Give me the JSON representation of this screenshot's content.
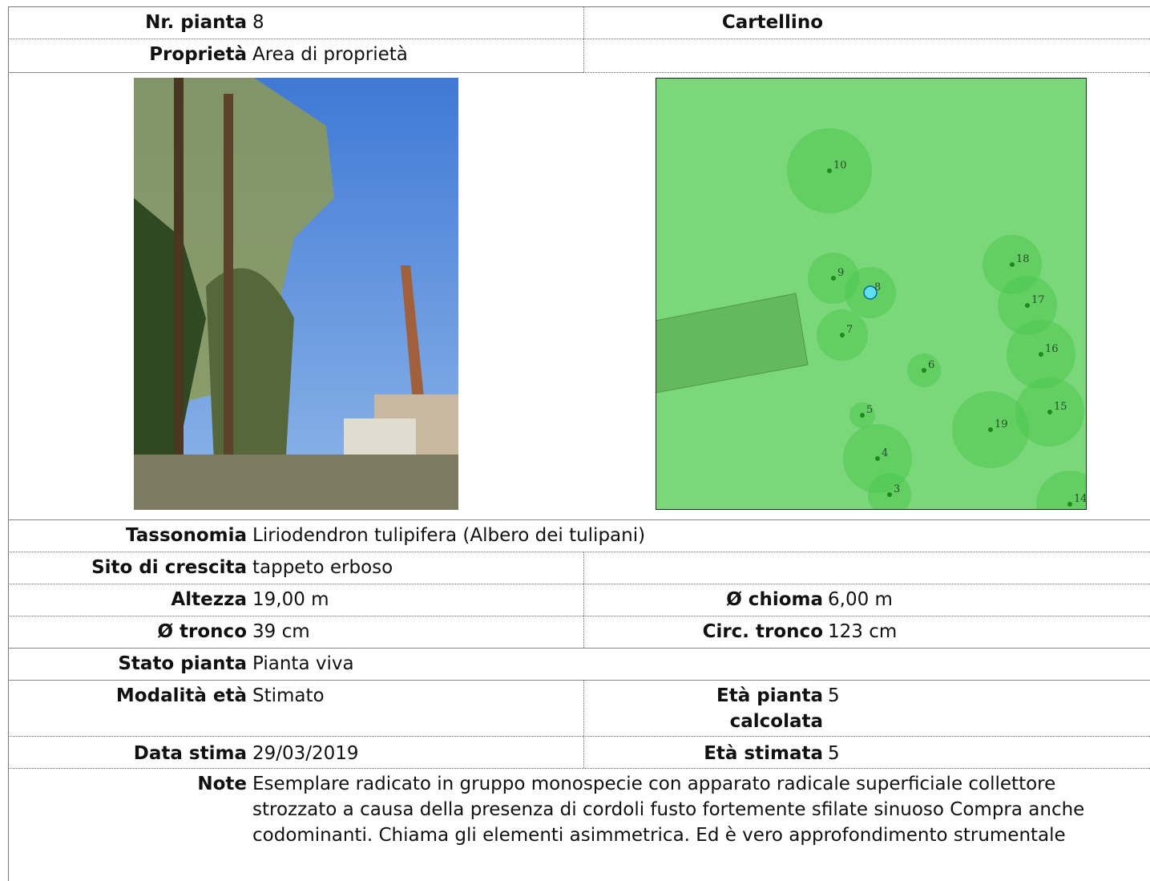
{
  "fields": [
    {
      "label": "Nr. pianta",
      "value": "8"
    },
    {
      "label": "Proprietà",
      "value": "Area di proprietà"
    },
    {
      "label": "Tassonomia",
      "value": "Liriodendron tulipifera (Albero dei tulipani)"
    },
    {
      "label": "Sito di crescita",
      "value": "tappeto erboso"
    },
    {
      "label": "Altezza",
      "value": "19,00 m"
    },
    {
      "label": "Ø chioma",
      "value": "6,00 m"
    },
    {
      "label": "Ø tronco",
      "value": "39 cm"
    },
    {
      "label": "Circ. tronco",
      "value": "123 cm"
    },
    {
      "label": "Stato pianta",
      "value": "Pianta viva"
    },
    {
      "label": "Modalità età",
      "value": "Stimato"
    },
    {
      "label": "Età pianta calcolata",
      "value": "5"
    },
    {
      "label": "Data stima",
      "value": "29/03/2019"
    },
    {
      "label": "Età stimata",
      "value": "5"
    },
    {
      "label": "Note",
      "value": "Esemplare radicato in gruppo monospecie con apparato radicale superficiale collettore strozzato a causa della presenza di cordoli fusto fortemente sfilate sinuoso Compra anche codominanti. Chiama gli elementi asimmetrica. Ed è vero approfondimento strumentale"
    }
  ],
  "cartellino": "Cartellino",
  "map": {
    "trees": [
      {
        "label": "10"
      },
      {
        "label": "9"
      },
      {
        "label": "8"
      },
      {
        "label": "7"
      },
      {
        "label": "6"
      },
      {
        "label": "5"
      },
      {
        "label": "4"
      },
      {
        "label": "3"
      },
      {
        "label": "18"
      },
      {
        "label": "17"
      },
      {
        "label": "16"
      },
      {
        "label": "15"
      },
      {
        "label": "19"
      },
      {
        "label": "14"
      }
    ]
  }
}
